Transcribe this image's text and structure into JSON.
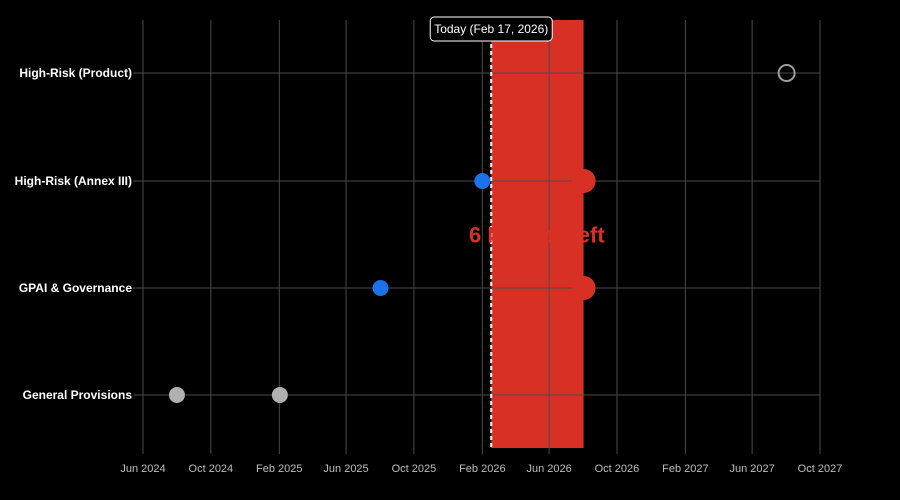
{
  "chart_data": {
    "type": "scatter",
    "title": "",
    "xlabel": "",
    "ylabel": "",
    "x_axis": {
      "type": "date",
      "range": [
        "2024-06-01",
        "2027-10-01"
      ],
      "ticks": [
        {
          "date": "2024-06-01",
          "label": "Jun 2024"
        },
        {
          "date": "2024-10-01",
          "label": "Oct 2024"
        },
        {
          "date": "2025-02-01",
          "label": "Feb 2025"
        },
        {
          "date": "2025-06-01",
          "label": "Jun 2025"
        },
        {
          "date": "2025-10-01",
          "label": "Oct 2025"
        },
        {
          "date": "2026-02-01",
          "label": "Feb 2026"
        },
        {
          "date": "2026-06-01",
          "label": "Jun 2026"
        },
        {
          "date": "2026-10-01",
          "label": "Oct 2026"
        },
        {
          "date": "2027-02-01",
          "label": "Feb 2027"
        },
        {
          "date": "2027-06-01",
          "label": "Jun 2027"
        },
        {
          "date": "2027-10-01",
          "label": "Oct 2027"
        }
      ]
    },
    "categories": [
      "High-Risk (Product)",
      "High-Risk (Annex III)",
      "GPAI & Governance",
      "General Provisions"
    ],
    "grid": true,
    "points": [
      {
        "category": "General Provisions",
        "date": "2024-08-01",
        "style": "past",
        "color": "#b0b0b0"
      },
      {
        "category": "General Provisions",
        "date": "2025-02-02",
        "style": "past",
        "color": "#b0b0b0"
      },
      {
        "category": "GPAI & Governance",
        "date": "2025-08-02",
        "style": "milestone",
        "color": "#1a73e8"
      },
      {
        "category": "GPAI & Governance",
        "date": "2026-08-02",
        "style": "deadline",
        "color": "#d93025"
      },
      {
        "category": "High-Risk (Annex III)",
        "date": "2026-02-01",
        "style": "milestone",
        "color": "#1a73e8"
      },
      {
        "category": "High-Risk (Annex III)",
        "date": "2026-08-02",
        "style": "deadline",
        "color": "#d93025"
      },
      {
        "category": "High-Risk (Product)",
        "date": "2027-08-02",
        "style": "future",
        "color": "#9e9e9e"
      }
    ],
    "today": {
      "date": "2026-02-17",
      "label": "Today (Feb 17, 2026)"
    },
    "highlight_band": {
      "start": "2026-02-17",
      "end": "2026-08-02",
      "color": "#d93025"
    },
    "annotation": {
      "text": "6 Months left",
      "color": "#d93025",
      "date": "2026-05-10",
      "category_between": [
        "High-Risk (Annex III)",
        "GPAI & Governance"
      ]
    }
  }
}
